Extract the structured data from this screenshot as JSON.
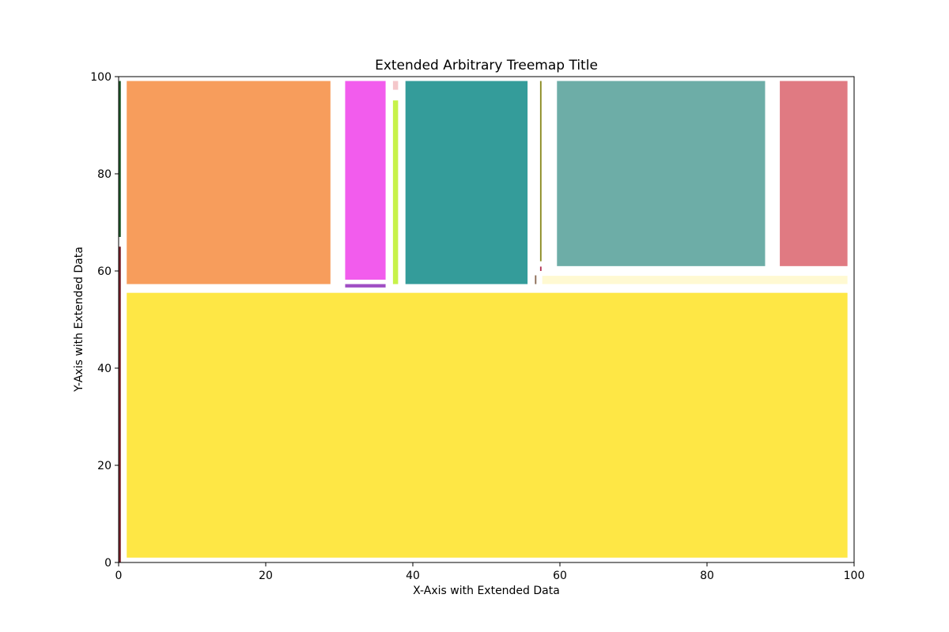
{
  "chart_data": {
    "type": "treemap",
    "title": "Extended Arbitrary Treemap Title",
    "xlabel": "X-Axis with Extended Data",
    "ylabel": "Y-Axis with Extended Data",
    "xlim": [
      0,
      100
    ],
    "ylim": [
      0,
      100
    ],
    "xticks": [
      0,
      20,
      40,
      60,
      80,
      100
    ],
    "yticks": [
      0,
      20,
      40,
      60,
      80,
      100
    ],
    "grid": false,
    "rects": [
      {
        "x0": 1.1,
        "y0": 1.0,
        "x1": 99.1,
        "y1": 55.5,
        "color": "#fee745"
      },
      {
        "x0": 1.1,
        "y0": 57.3,
        "x1": 28.8,
        "y1": 99.1,
        "color": "#f79d5c"
      },
      {
        "x0": 30.8,
        "y0": 58.2,
        "x1": 36.3,
        "y1": 99.1,
        "color": "#f25ced"
      },
      {
        "x0": 30.8,
        "y0": 56.6,
        "x1": 36.3,
        "y1": 57.3,
        "color": "#a04fc4"
      },
      {
        "x0": 37.3,
        "y0": 97.3,
        "x1": 38.0,
        "y1": 99.1,
        "color": "#f4c7ca"
      },
      {
        "x0": 37.3,
        "y0": 57.3,
        "x1": 38.0,
        "y1": 95.1,
        "color": "#c7f24a"
      },
      {
        "x0": 39.0,
        "y0": 57.3,
        "x1": 55.6,
        "y1": 99.1,
        "color": "#349c9a"
      },
      {
        "x0": 56.6,
        "y0": 57.3,
        "x1": 56.8,
        "y1": 59.1,
        "color": "#8a6a52"
      },
      {
        "x0": 57.3,
        "y0": 62.0,
        "x1": 57.5,
        "y1": 99.1,
        "color": "#8a8a20"
      },
      {
        "x0": 57.3,
        "y0": 60.0,
        "x1": 57.5,
        "y1": 60.9,
        "color": "#b03050"
      },
      {
        "x0": 57.6,
        "y0": 57.3,
        "x1": 99.1,
        "y1": 59.0,
        "color": "#fff9d2"
      },
      {
        "x0": 59.6,
        "y0": 61.0,
        "x1": 87.9,
        "y1": 99.1,
        "color": "#6dada7"
      },
      {
        "x0": 89.9,
        "y0": 61.0,
        "x1": 99.1,
        "y1": 99.1,
        "color": "#e07a82"
      },
      {
        "x0": 0.05,
        "y0": 67.0,
        "x1": 0.3,
        "y1": 99.1,
        "color": "#1f5a2a"
      },
      {
        "x0": 0.05,
        "y0": 0.0,
        "x1": 0.3,
        "y1": 65.0,
        "color": "#7a1f2a"
      }
    ]
  }
}
